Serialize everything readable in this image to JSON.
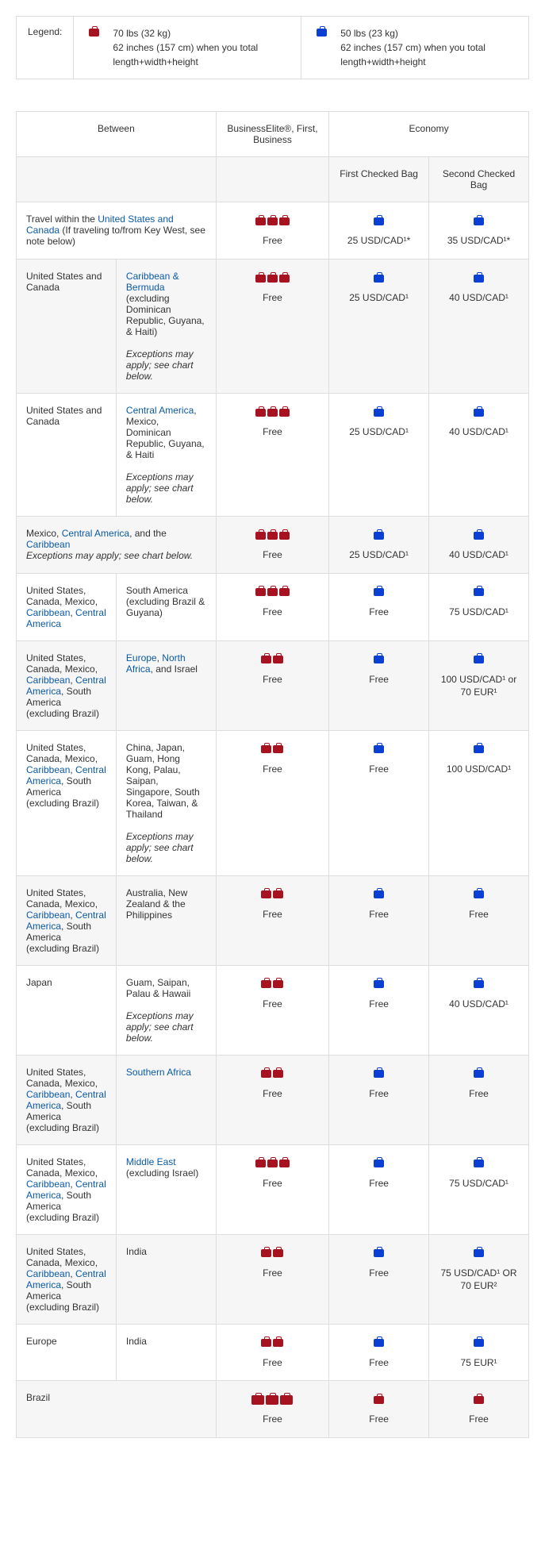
{
  "legend": {
    "label": "Legend:",
    "red": {
      "line1": "70 lbs (32 kg)",
      "line2": "62 inches (157 cm) when you total length+width+height"
    },
    "blue": {
      "line1": "50 lbs (23 kg)",
      "line2": "62 inches (157 cm) when you total length+width+height"
    }
  },
  "headers": {
    "between": "Between",
    "business": "BusinessElite®, First, Business",
    "economy": "Economy",
    "first_bag": "First Checked Bag",
    "second_bag": "Second Checked Bag"
  },
  "rows": [
    {
      "left_html": "Travel within the <span class='link'>United States and Canada</span> (If traveling to/from Key West, see note below)",
      "right_html": "",
      "colspan": true,
      "biz_bags": 3,
      "biz_label": "Free",
      "e1_label": "25 USD/CAD¹*",
      "e2_label": "35 USD/CAD¹*",
      "shade": false
    },
    {
      "left_html": "United States and Canada",
      "right_html": "<span class='link'>Caribbean & Bermuda</span> (excluding Dominican Republic, Guyana, & Haiti)<br><br><span class='italic'>Exceptions may apply; see chart below.</span>",
      "biz_bags": 3,
      "biz_label": "Free",
      "e1_label": "25 USD/CAD¹",
      "e2_label": "40 USD/CAD¹",
      "shade": true
    },
    {
      "left_html": "United States and Canada",
      "right_html": "<span class='link'>Central America</span>, Mexico, Dominican Republic, Guyana, & Haiti<br><br><span class='italic'>Exceptions may apply; see chart below.</span>",
      "biz_bags": 3,
      "biz_label": "Free",
      "e1_label": "25 USD/CAD¹",
      "e2_label": "40 USD/CAD¹",
      "shade": false
    },
    {
      "left_html": "Mexico, <span class='link'>Central America</span>, and the <span class='link'>Caribbean</span><br><span class='italic'>Exceptions may apply; see chart below.</span>",
      "right_html": "",
      "colspan": true,
      "biz_bags": 3,
      "biz_label": "Free",
      "e1_label": "25 USD/CAD¹",
      "e2_label": "40 USD/CAD¹",
      "shade": true
    },
    {
      "left_html": "United States, Canada, Mexico, <span class='link'>Caribbean</span>, <span class='link'>Central America</span>",
      "right_html": "South America (excluding Brazil & Guyana)",
      "biz_bags": 3,
      "biz_label": "Free",
      "e1_label": "Free",
      "e2_label": "75 USD/CAD¹",
      "shade": false
    },
    {
      "left_html": "United States, Canada, Mexico, <span class='link'>Caribbean</span>, <span class='link'>Central America</span>, South America (excluding Brazil)",
      "right_html": "<span class='link'>Europe</span>, <span class='link'>North Africa</span>, and Israel",
      "biz_bags": 2,
      "biz_label": "Free",
      "e1_label": "Free",
      "e2_label": "100 USD/CAD¹ or 70 EUR¹",
      "shade": true
    },
    {
      "left_html": "United States, Canada, Mexico, <span class='link'>Caribbean</span>, <span class='link'>Central America</span>, South America (excluding Brazil)",
      "right_html": "China, Japan, Guam, Hong Kong, Palau, Saipan, Singapore, South Korea, Taiwan, & Thailand<br><br><span class='italic'>Exceptions may apply; see chart below.</span>",
      "biz_bags": 2,
      "biz_label": "Free",
      "e1_label": "Free",
      "e2_label": "100 USD/CAD¹",
      "shade": false
    },
    {
      "left_html": "United States, Canada, Mexico, <span class='link'>Caribbean</span>, <span class='link'>Central America</span>, South America (excluding Brazil)",
      "right_html": "Australia, New Zealand & the Philippines",
      "biz_bags": 2,
      "biz_label": "Free",
      "e1_label": "Free",
      "e2_label": "Free",
      "shade": true
    },
    {
      "left_html": "Japan",
      "right_html": "Guam, Saipan, Palau & Hawaii<br><br><span class='italic'>Exceptions may apply; see chart below.</span>",
      "biz_bags": 2,
      "biz_label": "Free",
      "e1_label": "Free",
      "e2_label": "40 USD/CAD¹",
      "shade": false
    },
    {
      "left_html": "United States, Canada, Mexico, <span class='link'>Caribbean</span>, <span class='link'>Central America</span>, South America (excluding Brazil)",
      "right_html": "<span class='link'>Southern Africa</span>",
      "biz_bags": 2,
      "biz_label": "Free",
      "e1_label": "Free",
      "e2_label": "Free",
      "shade": true
    },
    {
      "left_html": "United States, Canada, Mexico, <span class='link'>Caribbean</span>, <span class='link'>Central America</span>, South America (excluding Brazil)",
      "right_html": "<span class='link'>Middle East</span> (excluding Israel)",
      "biz_bags": 3,
      "biz_label": "Free",
      "e1_label": "Free",
      "e2_label": "75 USD/CAD¹",
      "shade": false
    },
    {
      "left_html": "United States, Canada, Mexico, <span class='link'>Caribbean</span>, <span class='link'>Central America</span>, South America (excluding Brazil)",
      "right_html": "India",
      "biz_bags": 2,
      "biz_label": "Free",
      "e1_label": "Free",
      "e2_label": "75 USD/CAD¹ OR 70 EUR²",
      "shade": true
    },
    {
      "left_html": "Europe",
      "right_html": "India",
      "biz_bags": 2,
      "biz_label": "Free",
      "e1_label": "Free",
      "e2_label": "75 EUR¹",
      "shade": false
    },
    {
      "left_html": "Brazil",
      "right_html": "",
      "colspan": true,
      "biz_bags": 3,
      "biz_large": true,
      "biz_label": "Free",
      "e1_red": true,
      "e1_label": "Free",
      "e2_red": true,
      "e2_label": "Free",
      "shade": true
    }
  ]
}
